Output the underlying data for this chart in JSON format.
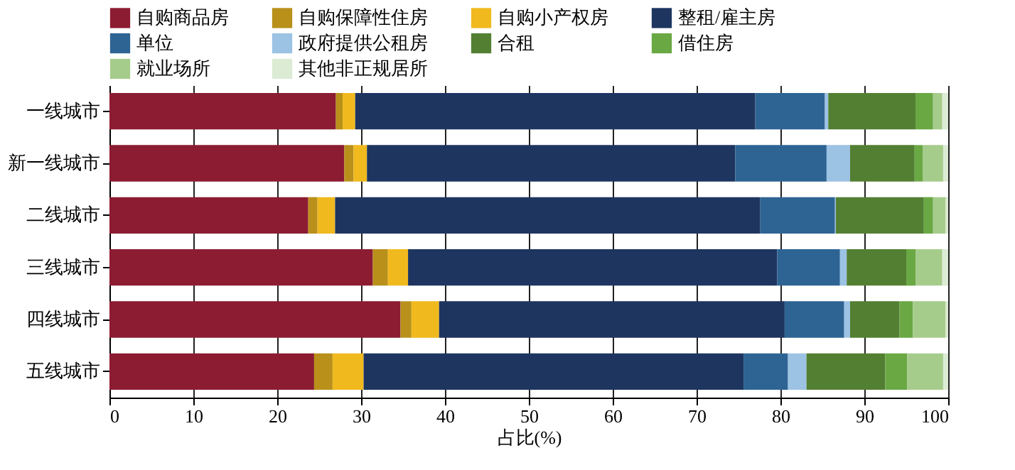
{
  "chart_data": {
    "type": "bar",
    "orientation": "horizontal",
    "stacked": true,
    "categories": [
      "一线城市",
      "新一线城市",
      "二线城市",
      "三线城市",
      "四线城市",
      "五线城市"
    ],
    "series": [
      {
        "name": "自购商品房",
        "color": "#8b1c32",
        "values": [
          27.0,
          28.0,
          23.7,
          31.4,
          34.7,
          24.4
        ]
      },
      {
        "name": "自购保障性住房",
        "color": "#b8901a",
        "values": [
          0.8,
          1.1,
          1.1,
          1.8,
          1.3,
          2.2
        ]
      },
      {
        "name": "自购小产权房",
        "color": "#f0b91e",
        "values": [
          1.5,
          1.6,
          2.1,
          2.4,
          3.3,
          3.7
        ]
      },
      {
        "name": "整租/雇主房",
        "color": "#1e3560",
        "values": [
          47.7,
          43.9,
          50.7,
          44.0,
          41.2,
          45.3
        ]
      },
      {
        "name": "单位",
        "color": "#2e6494",
        "values": [
          8.3,
          10.9,
          8.9,
          7.5,
          7.1,
          5.3
        ]
      },
      {
        "name": "政府提供公租房",
        "color": "#9cc2e4",
        "values": [
          0.4,
          2.8,
          0.1,
          0.8,
          0.7,
          2.2
        ]
      },
      {
        "name": "合租",
        "color": "#537f33",
        "values": [
          10.4,
          7.7,
          10.5,
          7.1,
          5.9,
          9.4
        ]
      },
      {
        "name": "借住房",
        "color": "#6aa844",
        "values": [
          2.1,
          1.0,
          1.1,
          1.1,
          1.6,
          2.6
        ]
      },
      {
        "name": "就业场所",
        "color": "#a6cc8c",
        "values": [
          1.1,
          2.4,
          1.5,
          3.2,
          3.9,
          4.3
        ]
      },
      {
        "name": "其他非正规居所",
        "color": "#dcebd4",
        "values": [
          0.7,
          0.6,
          0.3,
          0.7,
          0.3,
          0.6
        ]
      }
    ],
    "xlabel": "占比(%)",
    "xlim": [
      0,
      100
    ],
    "xticks": [
      0,
      10,
      20,
      30,
      40,
      50,
      60,
      70,
      80,
      90,
      100
    ],
    "grid": "x",
    "legend": "top"
  }
}
